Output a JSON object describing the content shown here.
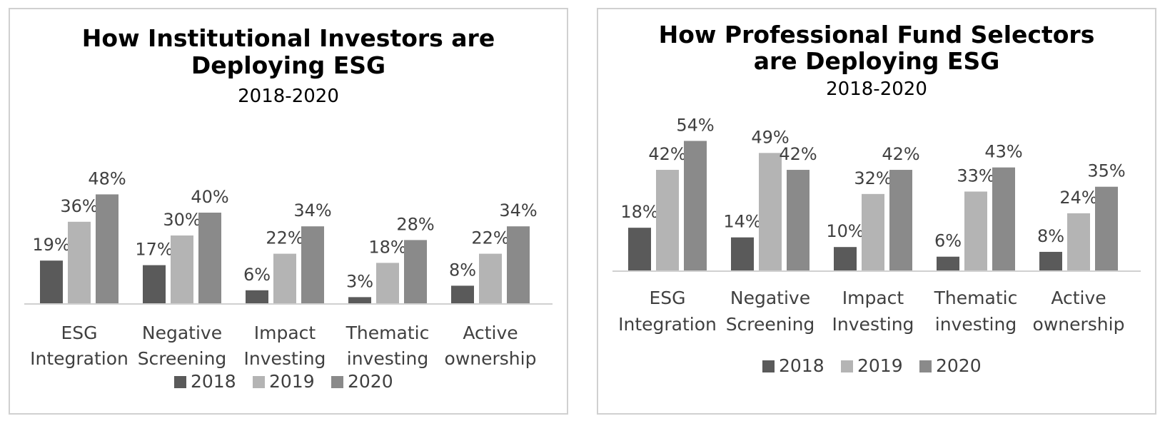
{
  "chart_data": [
    {
      "type": "bar",
      "title": [
        "How Institutional Investors are",
        "Deploying ESG"
      ],
      "subtitle": "2018-2020",
      "categories": [
        [
          "ESG",
          "Integration"
        ],
        [
          "Negative",
          "Screening"
        ],
        [
          "Impact",
          "Investing"
        ],
        [
          "Thematic",
          "investing"
        ],
        [
          "Active",
          "ownership"
        ]
      ],
      "series": [
        {
          "name": "2018",
          "color": "#5a5a5a",
          "values": [
            19,
            17,
            6,
            3,
            8
          ]
        },
        {
          "name": "2019",
          "color": "#b4b4b4",
          "values": [
            36,
            30,
            22,
            18,
            22
          ]
        },
        {
          "name": "2020",
          "color": "#8a8a8a",
          "values": [
            48,
            40,
            34,
            28,
            34
          ]
        }
      ],
      "value_suffix": "%",
      "legend_position": "bottom",
      "grid": false
    },
    {
      "type": "bar",
      "title": [
        "How Professional Fund Selectors",
        "are Deploying ESG"
      ],
      "subtitle": "2018-2020",
      "categories": [
        [
          "ESG",
          "Integration"
        ],
        [
          "Negative",
          "Screening"
        ],
        [
          "Impact",
          "Investing"
        ],
        [
          "Thematic",
          "investing"
        ],
        [
          "Active",
          "ownership"
        ]
      ],
      "series": [
        {
          "name": "2018",
          "color": "#5a5a5a",
          "values": [
            18,
            14,
            10,
            6,
            8
          ]
        },
        {
          "name": "2019",
          "color": "#b4b4b4",
          "values": [
            42,
            49,
            32,
            33,
            24
          ]
        },
        {
          "name": "2020",
          "color": "#8a8a8a",
          "values": [
            54,
            42,
            42,
            43,
            35
          ]
        }
      ],
      "value_suffix": "%",
      "legend_position": "bottom",
      "grid": false
    }
  ]
}
